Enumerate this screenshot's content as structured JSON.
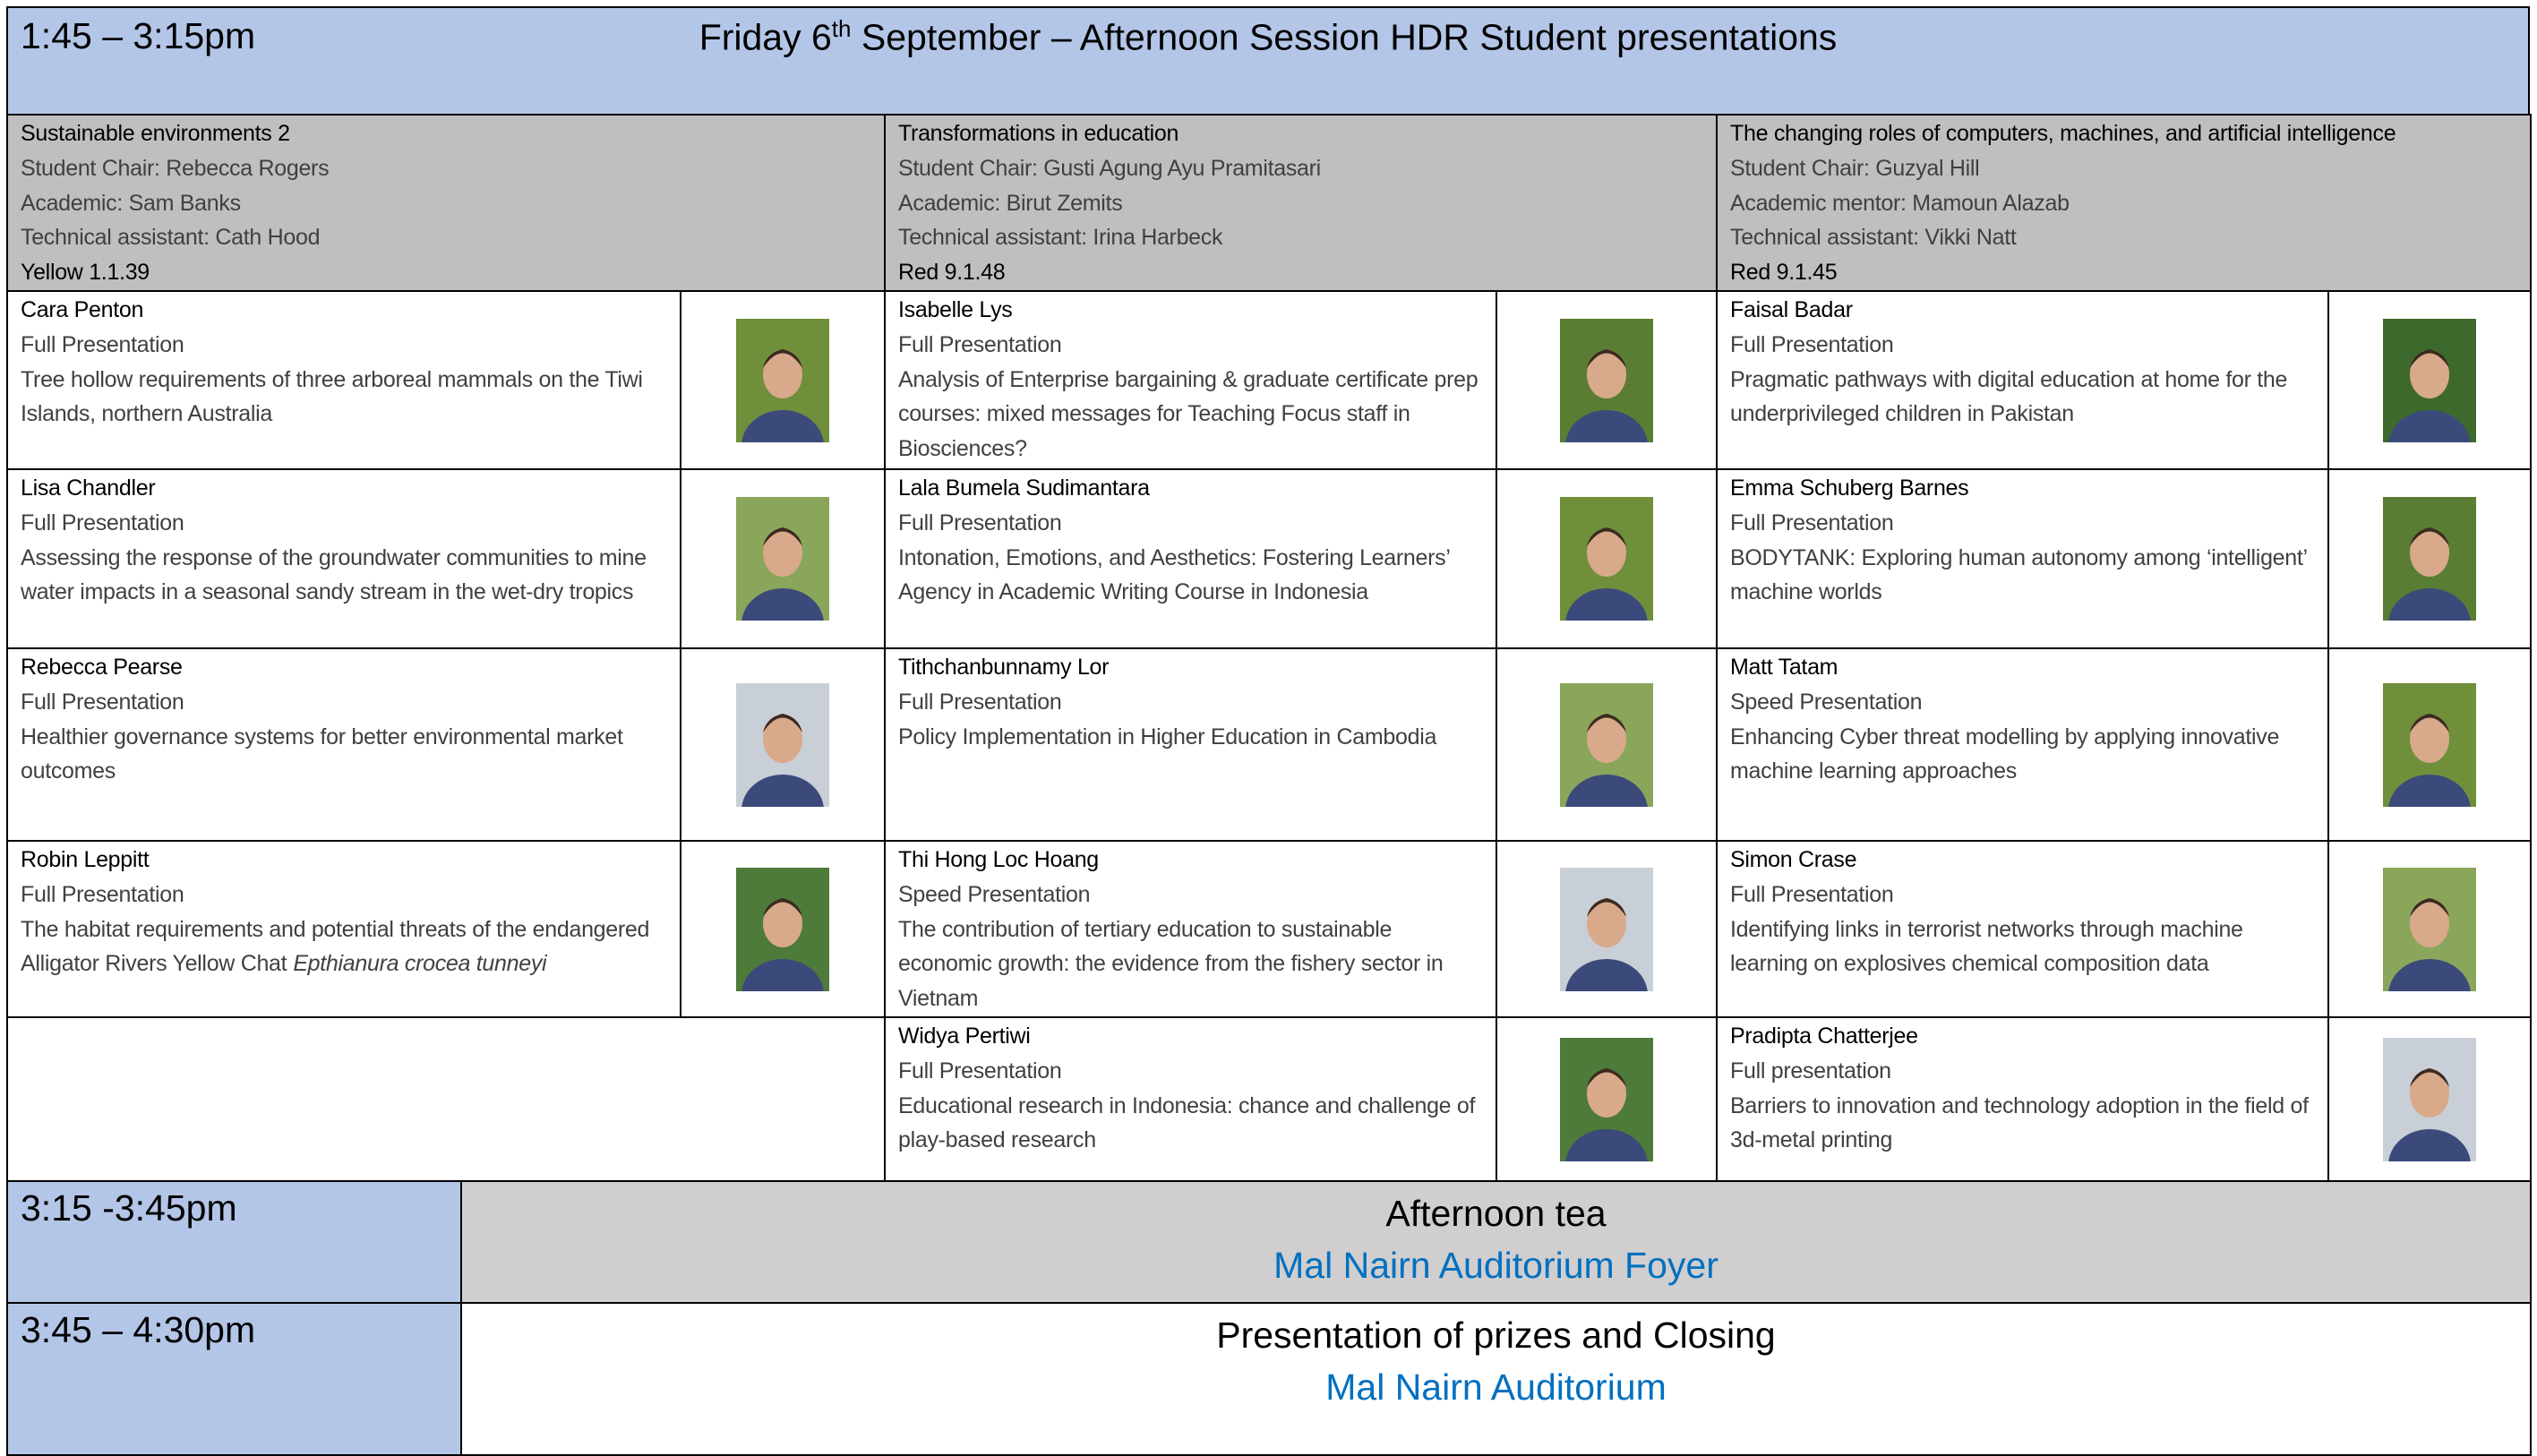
{
  "header": {
    "time": "1:45 – 3:15pm",
    "title_parts": [
      "Friday 6",
      "th",
      " September – Afternoon Session HDR Student presentations"
    ]
  },
  "sessions": [
    {
      "name": "Sustainable environments 2",
      "chair": "Student Chair: Rebecca Rogers",
      "academic": "Academic: Sam Banks",
      "technical": "Technical assistant: Cath Hood",
      "room": "Yellow 1.1.39",
      "presenters": [
        {
          "name": "Cara Penton",
          "type": "Full Presentation",
          "title": "Tree hollow requirements of three arboreal mammals on the Tiwi Islands, northern Australia"
        },
        {
          "name": "Lisa Chandler",
          "type": "Full Presentation",
          "title": "Assessing the response of the groundwater communities to mine water impacts in a seasonal sandy stream in the wet-dry tropics"
        },
        {
          "name": "Rebecca Pearse",
          "type": "Full Presentation",
          "title": "Healthier governance systems for better environmental market outcomes"
        },
        {
          "name": "Robin Leppitt",
          "type": "Full Presentation",
          "title": "The habitat requirements and potential threats of the endangered Alligator Rivers Yellow Chat",
          "title_italic": "Epthianura crocea tunneyi"
        }
      ]
    },
    {
      "name": "Transformations in education",
      "chair": "Student Chair: Gusti Agung Ayu Pramitasari",
      "academic": "Academic: Birut Zemits",
      "technical": "Technical assistant: Irina Harbeck",
      "room": "Red 9.1.48",
      "presenters": [
        {
          "name": "Isabelle Lys",
          "type": "Full Presentation",
          "title": "Analysis of Enterprise bargaining & graduate certificate prep courses: mixed messages for Teaching Focus staff in Biosciences?"
        },
        {
          "name": "Lala Bumela Sudimantara",
          "type": "Full Presentation",
          "title": "Intonation, Emotions, and Aesthetics: Fostering Learners’ Agency in Academic Writing Course in Indonesia"
        },
        {
          "name": "Tithchanbunnamy Lor",
          "type": "Full Presentation",
          "title": "Policy Implementation in Higher Education in Cambodia"
        },
        {
          "name": "Thi Hong Loc Hoang",
          "type": "Speed Presentation",
          "title": "The contribution of tertiary education to sustainable economic growth: the evidence from the fishery sector in Vietnam"
        },
        {
          "name": "Widya Pertiwi",
          "type": "Full Presentation",
          "title": "Educational research in Indonesia: chance and challenge of play-based research"
        }
      ]
    },
    {
      "name": "The changing roles of computers, machines, and artificial intelligence",
      "chair": "Student Chair: Guzyal Hill",
      "academic": "Academic mentor: Mamoun Alazab",
      "technical": "Technical assistant: Vikki Natt",
      "room": "Red 9.1.45",
      "presenters": [
        {
          "name": "Faisal Badar",
          "type": "Full Presentation",
          "title": "Pragmatic pathways with digital education at home for the underprivileged children in Pakistan"
        },
        {
          "name": "Emma Schuberg Barnes",
          "type": "Full Presentation",
          "title": "BODYTANK: Exploring human autonomy among ‘intelligent’ machine worlds"
        },
        {
          "name": "Matt Tatam",
          "type": "Speed Presentation",
          "title": "Enhancing Cyber threat modelling by applying innovative machine learning approaches"
        },
        {
          "name": "Simon Crase",
          "type": "Full Presentation",
          "title": "Identifying links in terrorist networks through machine learning on explosives chemical composition data"
        },
        {
          "name": "Pradipta Chatterjee",
          "type": "Full presentation",
          "title": "Barriers to innovation and technology adoption in the field of 3d-metal printing"
        }
      ]
    }
  ],
  "breaks": [
    {
      "time": "3:15 -3:45pm",
      "title": "Afternoon tea",
      "location": "Mal Nairn Auditorium Foyer"
    },
    {
      "time": "3:45 – 4:30pm",
      "title": "Presentation of prizes and Closing",
      "location": "Mal Nairn Auditorium"
    }
  ]
}
